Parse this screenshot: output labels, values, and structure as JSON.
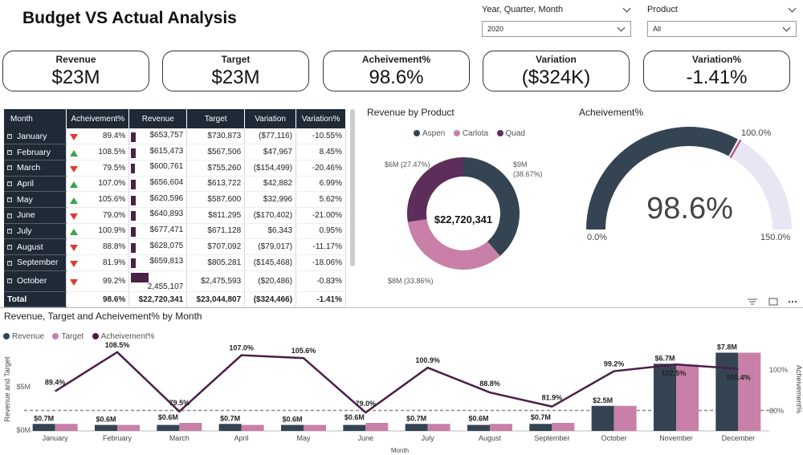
{
  "title": "Budget VS Actual Analysis",
  "slicers": [
    {
      "label": "Year, Quarter, Month",
      "value": "2020"
    },
    {
      "label": "Product",
      "value": "All"
    }
  ],
  "kpis": [
    {
      "label": "Revenue",
      "value": "$23M"
    },
    {
      "label": "Target",
      "value": "$23M"
    },
    {
      "label": "Acheivement%",
      "value": "98.6%"
    },
    {
      "label": "Variation",
      "value": "($324K)"
    },
    {
      "label": "Variation%",
      "value": "-1.41%"
    }
  ],
  "matrix": {
    "headers": [
      "Month",
      "Acheivement%",
      "Revenue",
      "Target",
      "Variation",
      "Variation%"
    ],
    "rows": [
      {
        "month": "January",
        "ach": "89.4%",
        "trend": "down",
        "rev": "$653,757",
        "target": "$730,873",
        "var": "($77,116)",
        "varp": "-10.55%"
      },
      {
        "month": "February",
        "ach": "108.5%",
        "trend": "up",
        "rev": "$615,473",
        "target": "$567,506",
        "var": "$47,967",
        "varp": "8.45%"
      },
      {
        "month": "March",
        "ach": "79.5%",
        "trend": "down",
        "rev": "$600,761",
        "target": "$755,260",
        "var": "($154,499)",
        "varp": "-20.46%"
      },
      {
        "month": "April",
        "ach": "107.0%",
        "trend": "up",
        "rev": "$656,604",
        "target": "$613,722",
        "var": "$42,882",
        "varp": "6.99%"
      },
      {
        "month": "May",
        "ach": "105.6%",
        "trend": "up",
        "rev": "$620,596",
        "target": "$587,600",
        "var": "$32,996",
        "varp": "5.62%"
      },
      {
        "month": "June",
        "ach": "79.0%",
        "trend": "down",
        "rev": "$640,893",
        "target": "$811,295",
        "var": "($170,402)",
        "varp": "-21.00%"
      },
      {
        "month": "July",
        "ach": "100.9%",
        "trend": "up",
        "rev": "$677,471",
        "target": "$671,128",
        "var": "$6,343",
        "varp": "0.95%"
      },
      {
        "month": "August",
        "ach": "88.8%",
        "trend": "down",
        "rev": "$628,075",
        "target": "$707,092",
        "var": "($79,017)",
        "varp": "-11.17%"
      },
      {
        "month": "September",
        "ach": "81.9%",
        "trend": "down",
        "rev": "$659,813",
        "target": "$805,281",
        "var": "($145,468)",
        "varp": "-18.06%"
      },
      {
        "month": "October",
        "ach": "99.2%",
        "trend": "down",
        "rev": "2,455,107",
        "target": "$2,475,593",
        "var": "($20,486)",
        "varp": "-0.83%"
      }
    ],
    "total": {
      "month": "Total",
      "ach": "98.6%",
      "rev": "$22,720,341",
      "target": "$23,044,807",
      "var": "($324,466)",
      "varp": "-1.41%"
    }
  },
  "donut": {
    "title": "Revenue by Product",
    "center": "$22,720,341",
    "legend": [
      "Aspen",
      "Carlota",
      "Quad"
    ],
    "labels": {
      "aspen": "$9M",
      "aspen_pct": "(38.67%)",
      "carlota": "$8M (33.86%)",
      "quad": "$6M (27.47%)"
    }
  },
  "gauge": {
    "title": "Acheivement%",
    "value_label": "98.6%",
    "min_label": "0.0%",
    "max_label": "150.0%",
    "target_label": "100.0%",
    "value": 98.6,
    "min": 0,
    "max": 150,
    "target": 100
  },
  "combo": {
    "title": "Revenue, Target and Acheivement% by Month",
    "legend": [
      "Revenue",
      "Target",
      "Acheivement%"
    ],
    "ylabel": "Revenue and Target",
    "y2label": "Acheivement%",
    "xlabel": "Month",
    "y_ticks": [
      "$5M",
      "$0M"
    ],
    "y2_ticks": [
      "100%",
      "80%"
    ]
  },
  "chart_data": {
    "type": "bar",
    "categories": [
      "January",
      "February",
      "March",
      "April",
      "May",
      "June",
      "July",
      "August",
      "September",
      "October",
      "November",
      "December"
    ],
    "series": [
      {
        "name": "Revenue",
        "values": [
          0.7,
          0.6,
          0.6,
          0.7,
          0.6,
          0.6,
          0.7,
          0.6,
          0.7,
          2.5,
          6.7,
          7.8
        ]
      },
      {
        "name": "Target",
        "values": [
          0.7,
          0.6,
          0.8,
          0.6,
          0.6,
          0.8,
          0.7,
          0.7,
          0.8,
          2.5,
          6.6,
          7.8
        ]
      },
      {
        "name": "Acheivement%",
        "type": "line",
        "values": [
          89.4,
          108.5,
          79.5,
          107.0,
          105.6,
          79.0,
          100.9,
          88.8,
          81.9,
          99.2,
          102.5,
          100.4
        ]
      }
    ],
    "bar_labels": [
      "$0.7M",
      "$0.6M",
      "$0.6M",
      "$0.7M",
      "$0.6M",
      "$0.6M",
      "$0.7M",
      "$0.6M",
      "$0.7M",
      "$2.5M",
      "$6.7M",
      "$7.8M"
    ],
    "line_labels": [
      "89.4%",
      "108.5%",
      "79.5%",
      "107.0%",
      "105.6%",
      "79.0%",
      "100.9%",
      "88.8%",
      "81.9%",
      "99.2%",
      "102.5%",
      "100.4%"
    ],
    "ylim": [
      0,
      8
    ],
    "y2lim": [
      70,
      110
    ],
    "reference_line": 80,
    "colors": {
      "revenue": "#344453",
      "target": "#c880a8",
      "ach": "#4a1f47"
    }
  },
  "colors": {
    "aspen": "#344453",
    "carlota": "#c880a8",
    "quad": "#5e2e5b",
    "gauge_fill": "#344453",
    "gauge_bg": "#e8e6f5"
  }
}
